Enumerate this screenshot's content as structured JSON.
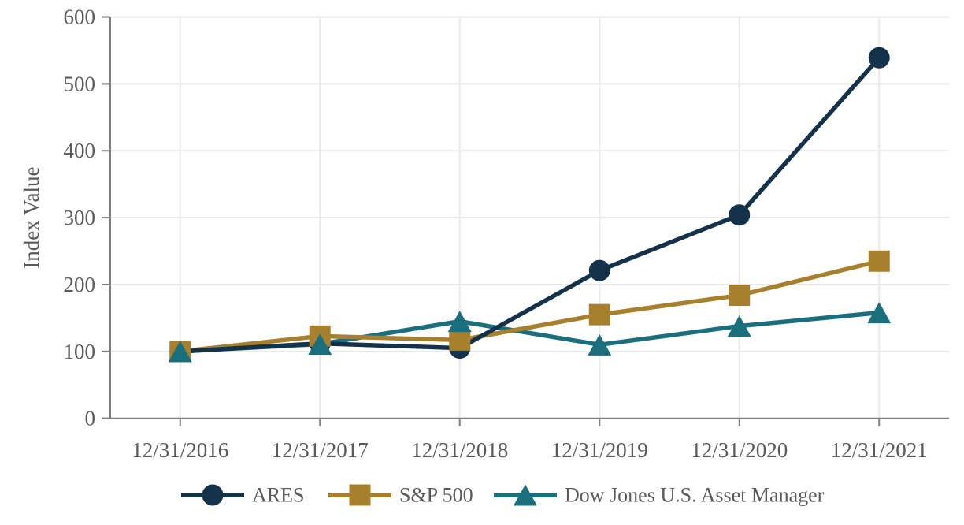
{
  "chart_data": {
    "type": "line",
    "title": "",
    "xlabel": "",
    "ylabel": "Index Value",
    "categories": [
      "12/31/2016",
      "12/31/2017",
      "12/31/2018",
      "12/31/2019",
      "12/31/2020",
      "12/31/2021"
    ],
    "series": [
      {
        "name": "ARES",
        "marker": "circle",
        "color": "#14334A",
        "values": [
          100,
          112,
          105,
          221,
          304,
          539
        ]
      },
      {
        "name": "S&P 500",
        "marker": "square",
        "color": "#A7802E",
        "values": [
          100,
          123,
          117,
          155,
          184,
          235
        ]
      },
      {
        "name": "Dow Jones U.S. Asset Manager",
        "marker": "triangle",
        "color": "#1B6F7D",
        "values": [
          100,
          111,
          145,
          110,
          138,
          158
        ]
      }
    ],
    "ylim": [
      0,
      600
    ],
    "ytick_step": 100,
    "y_tick_labels": [
      "0",
      "100",
      "200",
      "300",
      "400",
      "500",
      "600"
    ],
    "grid": "both",
    "legend_position": "bottom",
    "axis_color": "#7F7F7F",
    "grid_color": "#E9E9E9",
    "text_color": "#5A5A5A",
    "background_color": "#FFFFFF"
  }
}
